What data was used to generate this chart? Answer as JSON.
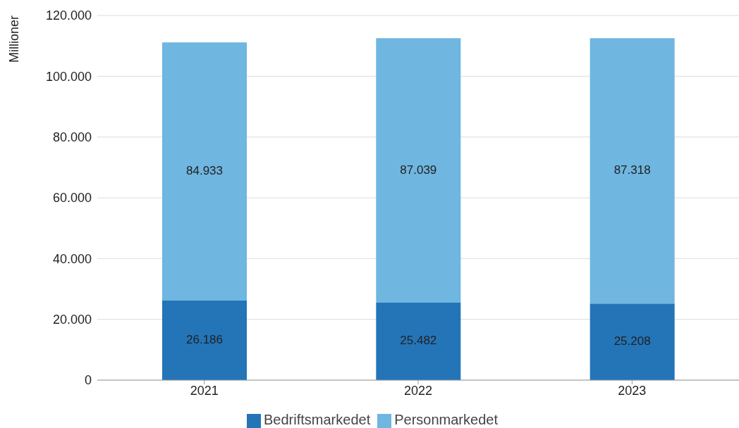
{
  "chart_data": {
    "type": "bar",
    "stacked": true,
    "ylabel": "Millioner",
    "categories": [
      "2021",
      "2022",
      "2023"
    ],
    "series": [
      {
        "name": "Bedriftsmarkedet",
        "color": "#2474b8",
        "values": [
          26186,
          25482,
          25208
        ],
        "value_labels": [
          "26.186",
          "25.482",
          "25.208"
        ]
      },
      {
        "name": "Personmarkedet",
        "color": "#6fb6e0",
        "values": [
          84933,
          87039,
          87318
        ],
        "value_labels": [
          "84.933",
          "87.039",
          "87.318"
        ]
      }
    ],
    "ylim": [
      0,
      120000
    ],
    "yticks": [
      {
        "value": 0,
        "label": "0"
      },
      {
        "value": 20000,
        "label": "20.000"
      },
      {
        "value": 40000,
        "label": "40.000"
      },
      {
        "value": 60000,
        "label": "60.000"
      },
      {
        "value": 80000,
        "label": "80.000"
      },
      {
        "value": 100000,
        "label": "100.000"
      },
      {
        "value": 120000,
        "label": "120.000"
      }
    ],
    "grid": "y",
    "legend": "bottom"
  }
}
